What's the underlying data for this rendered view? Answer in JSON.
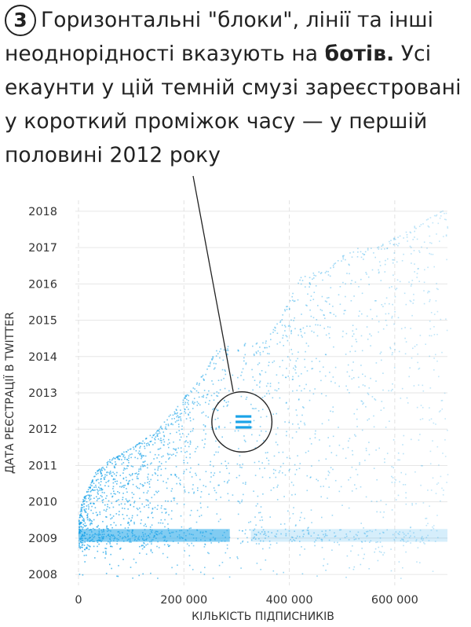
{
  "caption": {
    "step_number": "3",
    "text_before_bold": "Горизонтальні \"блоки\", лінії та інші неоднорідності вказують на ",
    "bold_text": "ботів.",
    "text_after_bold": " Усі екаунти у цій темній смузі зареєстровані у короткий проміжок часу — у першій половині 2012 року"
  },
  "chart_data": {
    "type": "scatter",
    "title": "",
    "xlabel": "КІЛЬКІСТЬ ПІДПИСНИКІВ",
    "ylabel": "ДАТА РЕЄСТРАЦІЇ В TWITTER",
    "x_ticks": [
      {
        "value": 0,
        "label": "0"
      },
      {
        "value": 200000,
        "label": "200 000"
      },
      {
        "value": 400000,
        "label": "400 000"
      },
      {
        "value": 600000,
        "label": "600 000"
      }
    ],
    "y_ticks": [
      {
        "value": 2008,
        "label": "2008"
      },
      {
        "value": 2009,
        "label": "2009"
      },
      {
        "value": 2010,
        "label": "2010"
      },
      {
        "value": 2011,
        "label": "2011"
      },
      {
        "value": 2012,
        "label": "2012"
      },
      {
        "value": 2013,
        "label": "2013"
      },
      {
        "value": 2014,
        "label": "2014"
      },
      {
        "value": 2015,
        "label": "2015"
      },
      {
        "value": 2016,
        "label": "2016"
      },
      {
        "value": 2017,
        "label": "2017"
      },
      {
        "value": 2018,
        "label": "2018"
      }
    ],
    "xlim": [
      0,
      700000
    ],
    "ylim": [
      2007.7,
      2018.3
    ],
    "grid": true,
    "point_color": "#1aa3e8",
    "upper_edge": {
      "x": [
        0,
        5000,
        15000,
        30000,
        60000,
        100000,
        150000,
        200000,
        240000,
        260000,
        290000,
        320000,
        350000,
        380000,
        400000,
        420000,
        440000,
        470000,
        500000,
        530000,
        560000,
        590000,
        620000,
        650000,
        680000,
        700000
      ],
      "y": [
        2009.5,
        2010.0,
        2010.3,
        2010.8,
        2011.2,
        2011.5,
        2012.0,
        2012.9,
        2013.6,
        2014.2,
        2014.4,
        2014.4,
        2014.4,
        2015.0,
        2015.6,
        2016.2,
        2016.3,
        2016.4,
        2016.8,
        2017.0,
        2017.0,
        2017.2,
        2017.5,
        2017.7,
        2017.95,
        2018.1
      ]
    },
    "gap_columns": [
      {
        "x_from": 287000,
        "x_to": 300000
      },
      {
        "x_from": 317000,
        "x_to": 327000
      }
    ],
    "dense_band": {
      "y_from": 2008.9,
      "y_to": 2009.25
    },
    "bot_block": {
      "x_from": 298000,
      "x_to": 328000,
      "y_values": [
        2012.05,
        2012.2,
        2012.35
      ]
    },
    "highlight_circle": {
      "x": 310000,
      "y": 2012.2,
      "radius_x": 57000
    },
    "pointer_line_from_caption": true
  }
}
